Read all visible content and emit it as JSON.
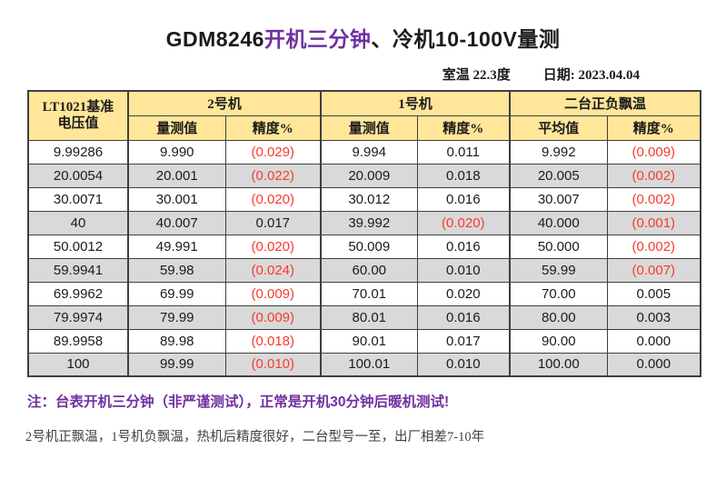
{
  "title": {
    "part1": "GDM8246",
    "part2": "开机三分钟",
    "part3": "、冷机10-100V量测"
  },
  "meta": {
    "room_temp": "室温 22.3度",
    "date": "日期: 2023.04.04"
  },
  "table": {
    "header": {
      "col1_line1": "LT1021基准",
      "col1_line2": "电压值",
      "groups": [
        {
          "label": "2号机"
        },
        {
          "label": "1号机"
        },
        {
          "label": "二台正负飘温"
        }
      ],
      "subheaders": [
        "量测值",
        "精度%",
        "量测值",
        "精度%",
        "平均值",
        "精度%"
      ]
    },
    "rows": [
      [
        "9.99286",
        "9.990",
        "(0.029)",
        "9.994",
        "0.011",
        "9.992",
        "(0.009)"
      ],
      [
        "20.0054",
        "20.001",
        "(0.022)",
        "20.009",
        "0.018",
        "20.005",
        "(0.002)"
      ],
      [
        "30.0071",
        "30.001",
        "(0.020)",
        "30.012",
        "0.016",
        "30.007",
        "(0.002)"
      ],
      [
        "40",
        "40.007",
        "0.017",
        "39.992",
        "(0.020)",
        "40.000",
        "(0.001)"
      ],
      [
        "50.0012",
        "49.991",
        "(0.020)",
        "50.009",
        "0.016",
        "50.000",
        "(0.002)"
      ],
      [
        "59.9941",
        "59.98",
        "(0.024)",
        "60.00",
        "0.010",
        "59.99",
        "(0.007)"
      ],
      [
        "69.9962",
        "69.99",
        "(0.009)",
        "70.01",
        "0.020",
        "70.00",
        "0.005"
      ],
      [
        "79.9974",
        "79.99",
        "(0.009)",
        "80.01",
        "0.016",
        "80.00",
        "0.003"
      ],
      [
        "89.9958",
        "89.98",
        "(0.018)",
        "90.01",
        "0.017",
        "90.00",
        "0.000"
      ],
      [
        "100",
        "99.99",
        "(0.010)",
        "100.01",
        "0.010",
        "100.00",
        "0.000"
      ]
    ]
  },
  "notes": {
    "line1": "注：台表开机三分钟（非严谨测试），正常是开机30分钟后暖机测试!",
    "line2": "2号机正飘温，1号机负飘温，热机后精度很好，二台型号一至，出厂相差7-10年"
  },
  "colors": {
    "header_fill": "#FFE699",
    "alt_row_fill": "#D9D9D9",
    "negative": "#F93A2C",
    "accent_purple": "#7030A0"
  }
}
